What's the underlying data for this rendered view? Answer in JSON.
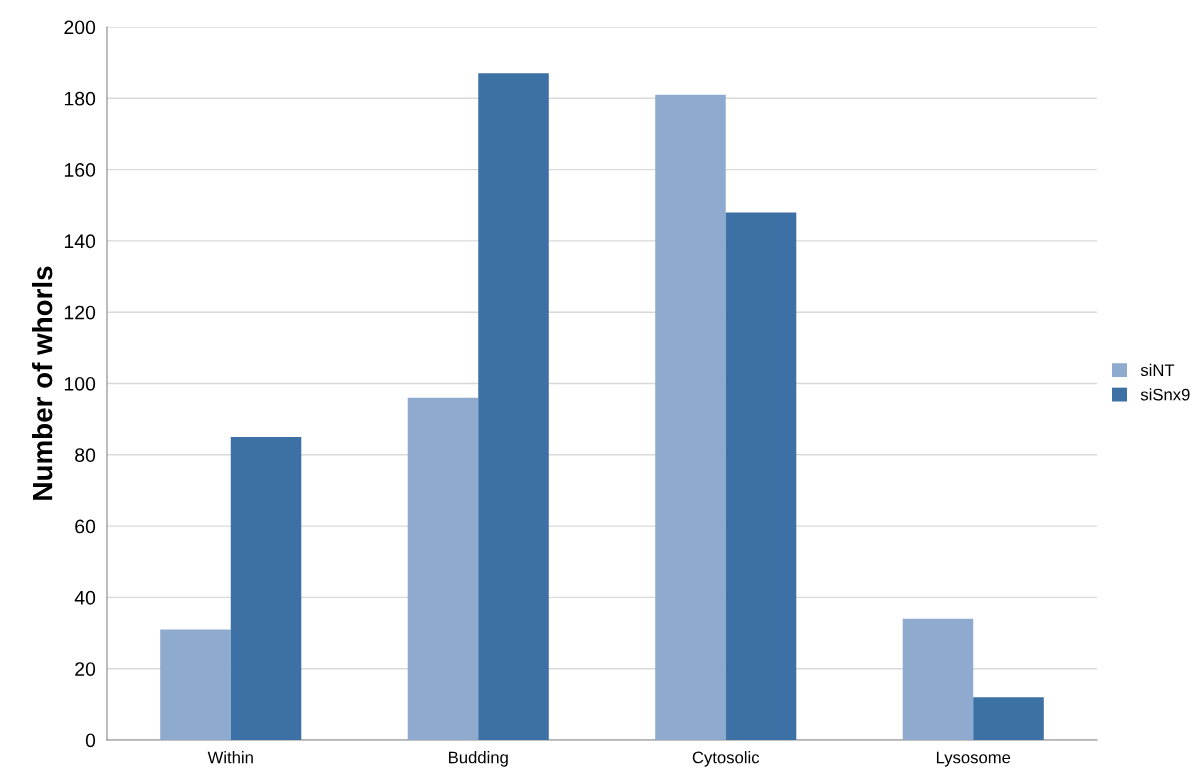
{
  "chart_data": {
    "type": "bar",
    "ylabel": "Number of whorls",
    "categories": [
      "Within",
      "Budding",
      "Cytosolic",
      "Lysosome"
    ],
    "series": [
      {
        "name": "siNT",
        "color": "#8faacf",
        "values": [
          31,
          96,
          181,
          34
        ]
      },
      {
        "name": "siSnx9",
        "color": "#3d70a4",
        "values": [
          85,
          187,
          148,
          12
        ]
      }
    ],
    "ylim": [
      0,
      200
    ],
    "yticks": [
      0,
      20,
      40,
      60,
      80,
      100,
      120,
      140,
      160,
      180,
      200
    ],
    "grid": "y",
    "legend": "right"
  }
}
